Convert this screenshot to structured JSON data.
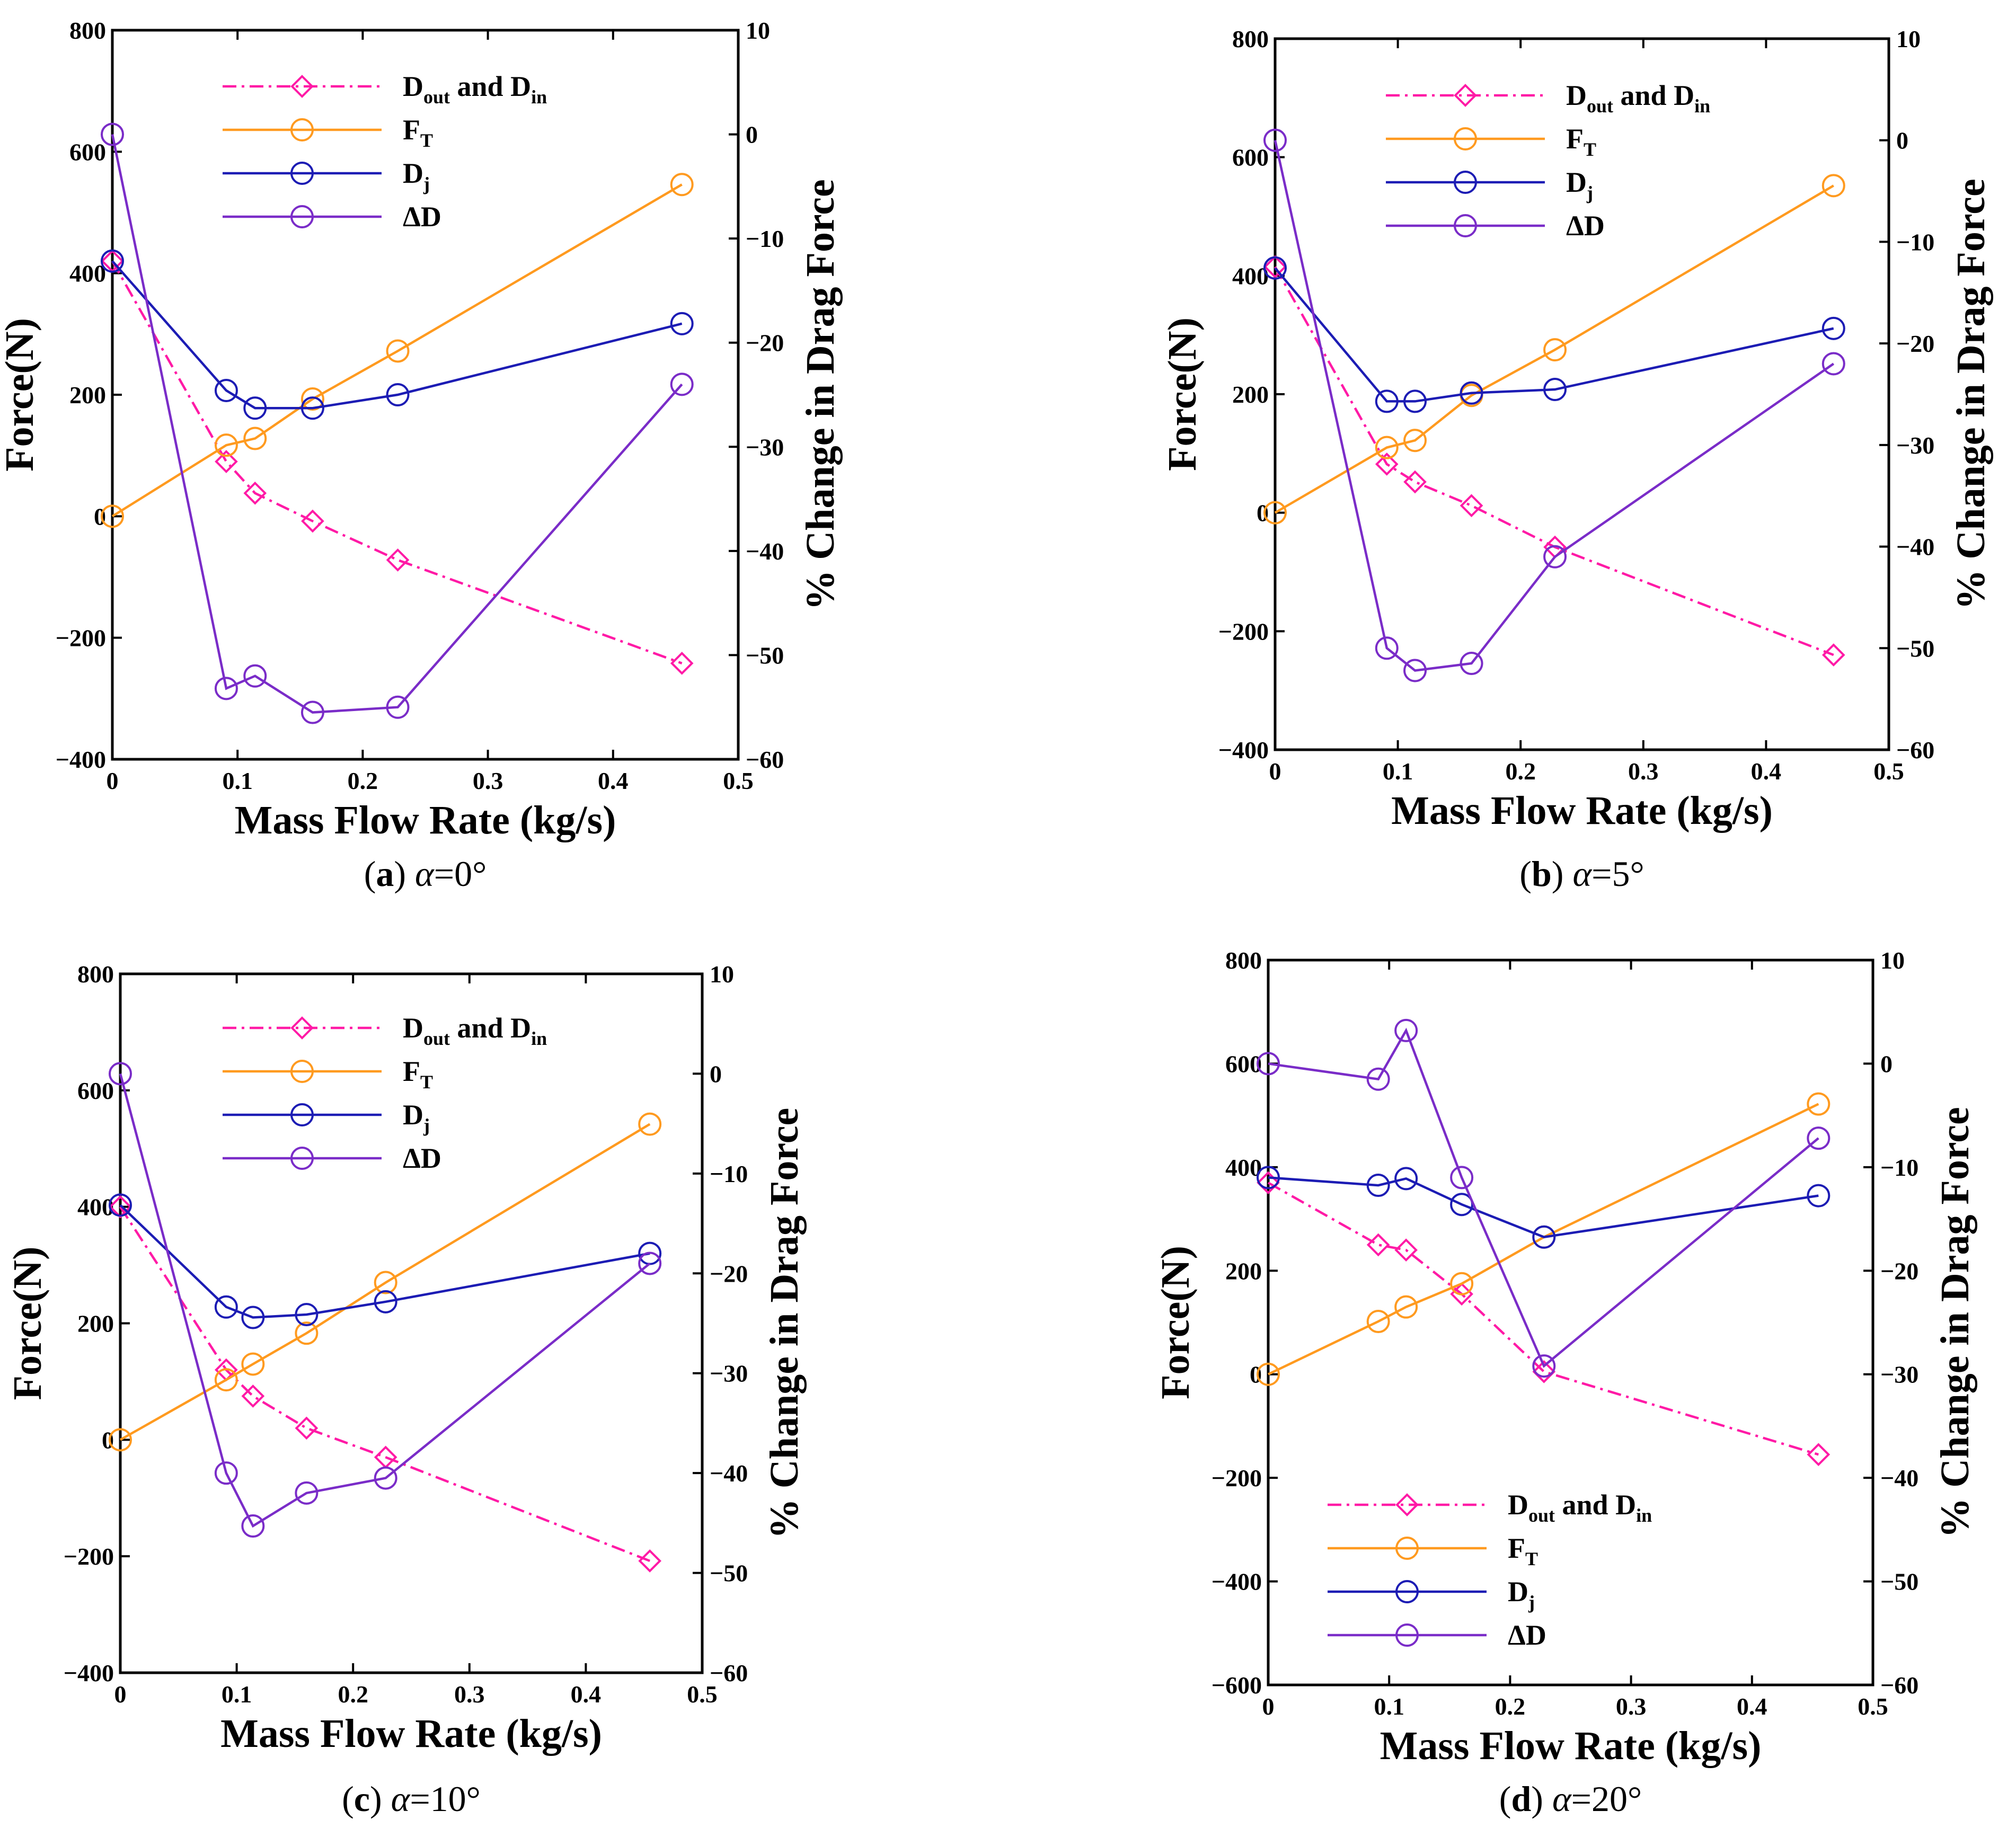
{
  "chart_data": [
    {
      "type": "line",
      "panel": "a",
      "caption": {
        "letter": "(a)",
        "alpha": "α",
        "value": "=0°"
      },
      "xlabel": "Mass Flow Rate (kg/s)",
      "ylabel": "Force(N)",
      "y2label": "% Change in  Drag Force",
      "xlim": [
        0,
        0.5
      ],
      "ylim": [
        -400,
        800
      ],
      "y2lim": [
        -60,
        10
      ],
      "xticks": [
        "0",
        "0.1",
        "0.2",
        "0.3",
        "0.4",
        "0.5"
      ],
      "yticks": [
        "−400",
        "−200",
        "0",
        "200",
        "400",
        "600",
        "800"
      ],
      "y2ticks": [
        "−60",
        "−50",
        "−40",
        "−30",
        "−20",
        "−10",
        "0",
        "10"
      ],
      "legend_position": "top-left",
      "series": [
        {
          "name": "D_out and D_in",
          "axis": "left",
          "color": "#ff1aa6",
          "marker": "diamond",
          "dash": "dashdot",
          "x": [
            0,
            0.091,
            0.114,
            0.16,
            0.228,
            0.455
          ],
          "y": [
            420,
            90,
            38,
            -8,
            -72,
            -242
          ]
        },
        {
          "name": "F_T",
          "axis": "left",
          "color": "#ff9a1f",
          "marker": "circle",
          "dash": "solid",
          "x": [
            0,
            0.091,
            0.114,
            0.16,
            0.228,
            0.455
          ],
          "y": [
            0,
            117,
            128,
            193,
            272,
            546
          ]
        },
        {
          "name": "D_j",
          "axis": "left",
          "color": "#1c1cb4",
          "marker": "circle",
          "dash": "solid",
          "x": [
            0,
            0.091,
            0.114,
            0.16,
            0.228,
            0.455
          ],
          "y": [
            420,
            207,
            178,
            178,
            200,
            317
          ]
        },
        {
          "name": "ΔD",
          "axis": "right",
          "color": "#7a2cc8",
          "marker": "circle",
          "dash": "solid",
          "x": [
            0,
            0.091,
            0.114,
            0.16,
            0.228,
            0.455
          ],
          "y": [
            0,
            -53.2,
            -52,
            -55.5,
            -55,
            -24
          ]
        }
      ]
    },
    {
      "type": "line",
      "panel": "b",
      "caption": {
        "letter": "(b)",
        "alpha": "α",
        "value": "=5°"
      },
      "xlabel": "Mass Flow Rate (kg/s)",
      "ylabel": "Force(N)",
      "y2label": "% Change in  Drag Force",
      "xlim": [
        0,
        0.5
      ],
      "ylim": [
        -400,
        800
      ],
      "y2lim": [
        -60,
        10
      ],
      "xticks": [
        "0",
        "0.1",
        "0.2",
        "0.3",
        "0.4",
        "0.5"
      ],
      "yticks": [
        "−400",
        "−200",
        "0",
        "200",
        "400",
        "600",
        "800"
      ],
      "y2ticks": [
        "−60",
        "−50",
        "−40",
        "−30",
        "−20",
        "−10",
        "0",
        "10"
      ],
      "legend_position": "top-left",
      "series": [
        {
          "name": "D_out and D_in",
          "axis": "left",
          "color": "#ff1aa6",
          "marker": "diamond",
          "dash": "dashdot",
          "x": [
            0,
            0.091,
            0.114,
            0.16,
            0.228,
            0.455
          ],
          "y": [
            415,
            82,
            52,
            12,
            -58,
            -240
          ]
        },
        {
          "name": "F_T",
          "axis": "left",
          "color": "#ff9a1f",
          "marker": "circle",
          "dash": "solid",
          "x": [
            0,
            0.091,
            0.114,
            0.16,
            0.228,
            0.455
          ],
          "y": [
            0,
            110,
            122,
            198,
            275,
            552
          ]
        },
        {
          "name": "D_j",
          "axis": "left",
          "color": "#1c1cb4",
          "marker": "circle",
          "dash": "solid",
          "x": [
            0,
            0.091,
            0.114,
            0.16,
            0.228,
            0.455
          ],
          "y": [
            413,
            188,
            188,
            202,
            208,
            311
          ]
        },
        {
          "name": "ΔD",
          "axis": "right",
          "color": "#7a2cc8",
          "marker": "circle",
          "dash": "solid",
          "x": [
            0,
            0.091,
            0.114,
            0.16,
            0.228,
            0.455
          ],
          "y": [
            0,
            -50,
            -52.2,
            -51.5,
            -41,
            -22
          ]
        }
      ]
    },
    {
      "type": "line",
      "panel": "c",
      "caption": {
        "letter": "(c)",
        "alpha": "α",
        "value": "=10°"
      },
      "xlabel": "Mass Flow Rate (kg/s)",
      "ylabel": "Force(N)",
      "y2label": "% Change in  Drag Force",
      "xlim": [
        0,
        0.5
      ],
      "ylim": [
        -400,
        800
      ],
      "y2lim": [
        -60,
        10
      ],
      "xticks": [
        "0",
        "0.1",
        "0.2",
        "0.3",
        "0.4",
        "0.5"
      ],
      "yticks": [
        "−400",
        "−200",
        "0",
        "200",
        "400",
        "600",
        "800"
      ],
      "y2ticks": [
        "−60",
        "−50",
        "−40",
        "−30",
        "−20",
        "−10",
        "0",
        "10"
      ],
      "legend_position": "top-left",
      "series": [
        {
          "name": "D_out and D_in",
          "axis": "left",
          "color": "#ff1aa6",
          "marker": "diamond",
          "dash": "dashdot",
          "x": [
            0,
            0.091,
            0.114,
            0.16,
            0.228,
            0.455
          ],
          "y": [
            400,
            120,
            75,
            20,
            -30,
            -208
          ]
        },
        {
          "name": "F_T",
          "axis": "left",
          "color": "#ff9a1f",
          "marker": "circle",
          "dash": "solid",
          "x": [
            0,
            0.091,
            0.114,
            0.16,
            0.228,
            0.455
          ],
          "y": [
            0,
            103,
            130,
            183,
            270,
            542
          ]
        },
        {
          "name": "D_j",
          "axis": "left",
          "color": "#1c1cb4",
          "marker": "circle",
          "dash": "solid",
          "x": [
            0,
            0.091,
            0.114,
            0.16,
            0.228,
            0.455
          ],
          "y": [
            403,
            228,
            210,
            215,
            237,
            320
          ]
        },
        {
          "name": "ΔD",
          "axis": "right",
          "color": "#7a2cc8",
          "marker": "circle",
          "dash": "solid",
          "x": [
            0,
            0.091,
            0.114,
            0.16,
            0.228,
            0.455
          ],
          "y": [
            0,
            -40,
            -45.3,
            -42,
            -40.5,
            -19
          ]
        }
      ]
    },
    {
      "type": "line",
      "panel": "d",
      "caption": {
        "letter": "(d)",
        "alpha": "α",
        "value": "=20°"
      },
      "xlabel": "Mass Flow Rate (kg/s)",
      "ylabel": "Force(N)",
      "y2label": "% Change in  Drag Force",
      "xlim": [
        0,
        0.5
      ],
      "ylim": [
        -600,
        800
      ],
      "y2lim": [
        -60,
        10
      ],
      "xticks": [
        "0",
        "0.1",
        "0.2",
        "0.3",
        "0.4",
        "0.5"
      ],
      "yticks": [
        "−600",
        "−400",
        "−200",
        "0",
        "200",
        "400",
        "600",
        "800"
      ],
      "y2ticks": [
        "−60",
        "−50",
        "−40",
        "−30",
        "−20",
        "−10",
        "0",
        "10"
      ],
      "legend_position": "bottom-left",
      "series": [
        {
          "name": "D_out and D_in",
          "axis": "left",
          "color": "#ff1aa6",
          "marker": "diamond",
          "dash": "dashdot",
          "x": [
            0,
            0.091,
            0.114,
            0.16,
            0.228,
            0.455
          ],
          "y": [
            370,
            250,
            240,
            155,
            5,
            -155
          ]
        },
        {
          "name": "F_T",
          "axis": "left",
          "color": "#ff9a1f",
          "marker": "circle",
          "dash": "solid",
          "x": [
            0,
            0.091,
            0.114,
            0.16,
            0.228,
            0.455
          ],
          "y": [
            0,
            102,
            130,
            175,
            265,
            522
          ]
        },
        {
          "name": "D_j",
          "axis": "left",
          "color": "#1c1cb4",
          "marker": "circle",
          "dash": "solid",
          "x": [
            0,
            0.091,
            0.114,
            0.16,
            0.228,
            0.455
          ],
          "y": [
            380,
            365,
            378,
            328,
            265,
            345
          ]
        },
        {
          "name": "ΔD",
          "axis": "right",
          "color": "#7a2cc8",
          "marker": "circle",
          "dash": "solid",
          "x": [
            0,
            0.091,
            0.114,
            0.16,
            0.228,
            0.455
          ],
          "y": [
            0,
            -1.5,
            3.2,
            -11,
            -29.2,
            -7.2
          ]
        }
      ]
    }
  ]
}
